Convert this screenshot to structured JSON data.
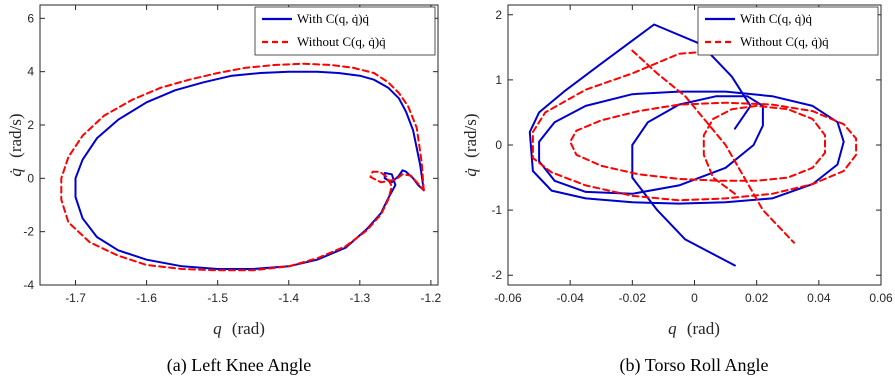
{
  "chart_data": [
    {
      "type": "line",
      "caption": "(a) Left Knee Angle",
      "xlabel_var": "q",
      "xlabel_unit": "(rad)",
      "ylabel_var": "q̇",
      "ylabel_unit": "(rad/s)",
      "xlim": [
        -1.75,
        -1.19
      ],
      "ylim": [
        -4,
        6.5
      ],
      "xticks": [
        -1.7,
        -1.6,
        -1.5,
        -1.4,
        -1.3,
        -1.2
      ],
      "xtick_labels": [
        "-1.7",
        "-1.6",
        "-1.5",
        "-1.4",
        "-1.3",
        "-1.2"
      ],
      "yticks": [
        -4,
        -2,
        0,
        2,
        4,
        6
      ],
      "ytick_labels": [
        "-4",
        "-2",
        "0",
        "2",
        "4",
        "6"
      ],
      "legend_position": "top-right",
      "series": [
        {
          "name": "With C(q, q̇)q̇",
          "color": "#0000cc",
          "dash": "solid",
          "x": [
            -1.21,
            -1.215,
            -1.225,
            -1.235,
            -1.245,
            -1.26,
            -1.28,
            -1.3,
            -1.33,
            -1.36,
            -1.4,
            -1.44,
            -1.48,
            -1.52,
            -1.56,
            -1.6,
            -1.64,
            -1.67,
            -1.69,
            -1.7,
            -1.7,
            -1.69,
            -1.67,
            -1.64,
            -1.6,
            -1.55,
            -1.5,
            -1.45,
            -1.4,
            -1.36,
            -1.32,
            -1.29,
            -1.27,
            -1.26,
            -1.25,
            -1.255,
            -1.265,
            -1.265,
            -1.255,
            -1.245,
            -1.24,
            -1.235,
            -1.225,
            -1.218,
            -1.21
          ],
          "y": [
            -0.45,
            0.5,
            1.8,
            2.5,
            3.0,
            3.4,
            3.7,
            3.85,
            3.95,
            4.0,
            4.0,
            3.95,
            3.85,
            3.6,
            3.3,
            2.85,
            2.2,
            1.5,
            0.7,
            0.0,
            -0.7,
            -1.5,
            -2.2,
            -2.7,
            -3.05,
            -3.3,
            -3.4,
            -3.4,
            -3.3,
            -3.05,
            -2.6,
            -1.9,
            -1.3,
            -0.75,
            -0.25,
            0.15,
            0.2,
            0.0,
            -0.15,
            0.1,
            0.3,
            0.25,
            0.0,
            -0.25,
            -0.45
          ]
        },
        {
          "name": "Without C(q, q̇)q̇",
          "color": "#ff0000",
          "dash": "dashed",
          "x": [
            -1.21,
            -1.213,
            -1.22,
            -1.232,
            -1.245,
            -1.26,
            -1.28,
            -1.31,
            -1.34,
            -1.38,
            -1.42,
            -1.46,
            -1.5,
            -1.54,
            -1.58,
            -1.62,
            -1.66,
            -1.69,
            -1.71,
            -1.72,
            -1.72,
            -1.71,
            -1.68,
            -1.64,
            -1.6,
            -1.55,
            -1.5,
            -1.45,
            -1.4,
            -1.36,
            -1.32,
            -1.29,
            -1.27,
            -1.26,
            -1.255,
            -1.262,
            -1.272,
            -1.282,
            -1.285,
            -1.27,
            -1.25,
            -1.24,
            -1.228,
            -1.218,
            -1.21
          ],
          "y": [
            -0.45,
            0.6,
            1.9,
            2.7,
            3.2,
            3.6,
            3.95,
            4.15,
            4.25,
            4.3,
            4.25,
            4.15,
            3.95,
            3.7,
            3.4,
            2.95,
            2.35,
            1.6,
            0.8,
            0.0,
            -0.8,
            -1.65,
            -2.4,
            -2.9,
            -3.25,
            -3.4,
            -3.45,
            -3.45,
            -3.3,
            -3.0,
            -2.55,
            -1.95,
            -1.35,
            -0.8,
            -0.3,
            0.05,
            0.25,
            0.25,
            0.05,
            -0.15,
            -0.05,
            0.15,
            0.1,
            -0.2,
            -0.45
          ]
        }
      ]
    },
    {
      "type": "line",
      "caption": "(b) Torso Roll Angle",
      "xlabel_var": "q",
      "xlabel_unit": "(rad)",
      "ylabel_var": "q̇",
      "ylabel_unit": "(rad/s)",
      "xlim": [
        -0.06,
        0.06
      ],
      "ylim": [
        -2.15,
        2.15
      ],
      "xticks": [
        -0.06,
        -0.04,
        -0.02,
        0,
        0.02,
        0.04,
        0.06
      ],
      "xtick_labels": [
        "-0.06",
        "-0.04",
        "-0.02",
        "0",
        "0.02",
        "0.04",
        "0.06"
      ],
      "yticks": [
        -2,
        -1,
        0,
        1,
        2
      ],
      "ytick_labels": [
        "-2",
        "-1",
        "0",
        "1",
        "2"
      ],
      "legend_position": "top-right",
      "series": [
        {
          "name": "With C(q, q̇)q̇",
          "color": "#0000cc",
          "dash": "solid",
          "x": [
            0.013,
            -0.003,
            -0.012,
            -0.02,
            -0.02,
            -0.015,
            -0.005,
            0.007,
            0.017,
            0.022,
            0.022,
            0.019,
            0.01,
            -0.005,
            -0.02,
            -0.035,
            -0.045,
            -0.05,
            -0.05,
            -0.045,
            -0.035,
            -0.02,
            -0.005,
            0.01,
            0.025,
            0.038,
            0.046,
            0.048,
            0.046,
            0.038,
            0.025,
            0.01,
            -0.005,
            -0.02,
            -0.035,
            -0.046,
            -0.052,
            -0.053,
            -0.05,
            -0.042,
            -0.03,
            -0.013,
            0.002,
            0.012,
            0.018,
            0.013
          ],
          "y": [
            -1.85,
            -1.45,
            -1.0,
            -0.5,
            0.0,
            0.35,
            0.62,
            0.75,
            0.75,
            0.6,
            0.3,
            0.0,
            -0.35,
            -0.62,
            -0.75,
            -0.72,
            -0.55,
            -0.25,
            0.05,
            0.35,
            0.6,
            0.78,
            0.82,
            0.82,
            0.75,
            0.6,
            0.35,
            0.05,
            -0.3,
            -0.6,
            -0.82,
            -0.88,
            -0.9,
            -0.88,
            -0.82,
            -0.7,
            -0.4,
            0.2,
            0.5,
            0.82,
            1.25,
            1.85,
            1.55,
            1.05,
            0.6,
            0.25
          ]
        },
        {
          "name": "Without C(q, q̇)q̇",
          "color": "#ff0000",
          "dash": "dashed",
          "x": [
            0.013,
            0.006,
            0.003,
            0.003,
            0.006,
            0.012,
            0.02,
            0.03,
            0.038,
            0.042,
            0.042,
            0.038,
            0.03,
            0.02,
            0.008,
            -0.005,
            -0.018,
            -0.03,
            -0.038,
            -0.04,
            -0.038,
            -0.03,
            -0.018,
            -0.005,
            0.01,
            0.025,
            0.038,
            0.048,
            0.052,
            0.052,
            0.048,
            0.038,
            0.025,
            0.01,
            -0.005,
            -0.02,
            -0.035,
            -0.046,
            -0.052,
            -0.052,
            -0.048,
            -0.035,
            -0.02,
            -0.005,
            0.008
          ],
          "y": [
            -0.75,
            -0.5,
            -0.15,
            0.15,
            0.4,
            0.55,
            0.6,
            0.55,
            0.4,
            0.15,
            -0.12,
            -0.35,
            -0.5,
            -0.55,
            -0.55,
            -0.52,
            -0.45,
            -0.32,
            -0.15,
            0.05,
            0.22,
            0.38,
            0.52,
            0.62,
            0.65,
            0.62,
            0.52,
            0.32,
            0.1,
            -0.15,
            -0.4,
            -0.6,
            -0.75,
            -0.82,
            -0.85,
            -0.78,
            -0.62,
            -0.42,
            -0.2,
            0.2,
            0.5,
            0.85,
            1.1,
            1.4,
            1.45
          ]
        },
        {
          "name": "",
          "color": "#ff0000",
          "dash": "dashed",
          "x": [
            -0.02,
            -0.012,
            -0.003,
            0.01,
            0.022,
            0.032
          ],
          "y": [
            1.45,
            1.1,
            0.75,
            0.0,
            -1.0,
            -1.5
          ]
        }
      ]
    }
  ]
}
